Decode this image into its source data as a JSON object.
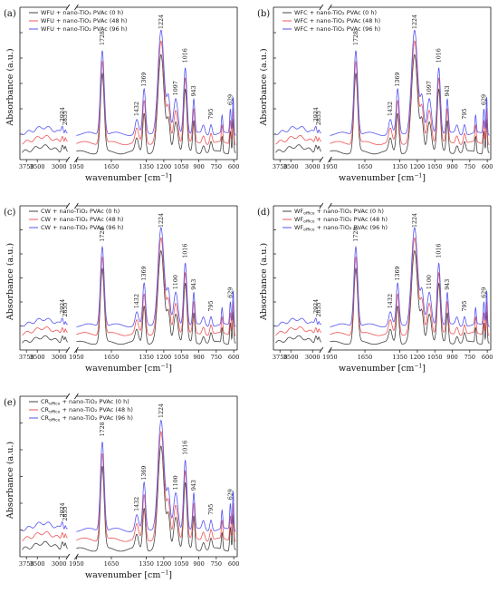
{
  "figure": {
    "y_axis_title": "Absorbance (a.u.)",
    "x_axis_title": "wavenumber [cm",
    "x_axis_title_sup": "−1",
    "x_axis_title_end": "]"
  },
  "colors": {
    "0h": "#444444",
    "48h": "#ee5555",
    "96h": "#5555ee",
    "axis": "#111111"
  },
  "chart_data": [
    {
      "type": "line",
      "panel_label": "(a)",
      "series": [
        {
          "name": "WFU + nano-TiO₂ PVAc (0 h)",
          "color_key": "0h"
        },
        {
          "name": "WFU + nano-TiO₂ PVAc (48 h)",
          "color_key": "48h"
        },
        {
          "name": "WFU + nano-TiO₂ PVAc (96 h)",
          "color_key": "96h"
        }
      ],
      "x_break": [
        2800,
        1950
      ],
      "x_ticks": [
        3750,
        3500,
        3000,
        1950,
        1650,
        1350,
        1200,
        1050,
        900,
        750,
        600
      ],
      "peak_labels": [
        {
          "wavenumber": 2924,
          "label": "2924"
        },
        {
          "wavenumber": 2855,
          "label": "2855"
        },
        {
          "wavenumber": 1728,
          "label": "1728"
        },
        {
          "wavenumber": 1432,
          "label": "1432"
        },
        {
          "wavenumber": 1369,
          "label": "1369"
        },
        {
          "wavenumber": 1224,
          "label": "1224"
        },
        {
          "wavenumber": 1097,
          "label": "1097"
        },
        {
          "wavenumber": 1016,
          "label": "1016"
        },
        {
          "wavenumber": 943,
          "label": "943"
        },
        {
          "wavenumber": 795,
          "label": "795"
        },
        {
          "wavenumber": 629,
          "label": "629"
        }
      ]
    },
    {
      "type": "line",
      "panel_label": "(b)",
      "series": [
        {
          "name": "WFC + nano-TiO₂ PVAc (0 h)",
          "color_key": "0h"
        },
        {
          "name": "WFC + nano-TiO₂ PVAc (48 h)",
          "color_key": "48h"
        },
        {
          "name": "WFC + nano-TiO₂ PVAc (96 h)",
          "color_key": "96h"
        }
      ],
      "x_break": [
        2800,
        1950
      ],
      "x_ticks": [
        3750,
        3500,
        3000,
        1950,
        1650,
        1350,
        1200,
        1050,
        900,
        750,
        600
      ],
      "peak_labels": [
        {
          "wavenumber": 2924,
          "label": "2924"
        },
        {
          "wavenumber": 2855,
          "label": "2855"
        },
        {
          "wavenumber": 1728,
          "label": "1728"
        },
        {
          "wavenumber": 1432,
          "label": "1432"
        },
        {
          "wavenumber": 1369,
          "label": "1369"
        },
        {
          "wavenumber": 1224,
          "label": "1224"
        },
        {
          "wavenumber": 1097,
          "label": "1097"
        },
        {
          "wavenumber": 1016,
          "label": "1016"
        },
        {
          "wavenumber": 943,
          "label": "943"
        },
        {
          "wavenumber": 795,
          "label": "795"
        },
        {
          "wavenumber": 629,
          "label": "629"
        }
      ]
    },
    {
      "type": "line",
      "panel_label": "(c)",
      "series": [
        {
          "name": "CW + nano-TiO₂ PVAc (0 h)",
          "color_key": "0h"
        },
        {
          "name": "CW + nano-TiO₂ PVAc (48 h)",
          "color_key": "48h"
        },
        {
          "name": "CW + nano-TiO₂ PVAc (96 h)",
          "color_key": "96h"
        }
      ],
      "x_break": [
        2800,
        1950
      ],
      "x_ticks": [
        3750,
        3500,
        3000,
        1950,
        1650,
        1350,
        1200,
        1050,
        900,
        750,
        600
      ],
      "peak_labels": [
        {
          "wavenumber": 2924,
          "label": "2924"
        },
        {
          "wavenumber": 2855,
          "label": "2855"
        },
        {
          "wavenumber": 1728,
          "label": "1728"
        },
        {
          "wavenumber": 1432,
          "label": "1432"
        },
        {
          "wavenumber": 1369,
          "label": "1369"
        },
        {
          "wavenumber": 1224,
          "label": "1224"
        },
        {
          "wavenumber": 1100,
          "label": "1100"
        },
        {
          "wavenumber": 1016,
          "label": "1016"
        },
        {
          "wavenumber": 943,
          "label": "943"
        },
        {
          "wavenumber": 795,
          "label": "795"
        },
        {
          "wavenumber": 629,
          "label": "629"
        }
      ]
    },
    {
      "type": "line",
      "panel_label": "(d)",
      "series": [
        {
          "name": "WF",
          "name_sub": "office",
          "name_rest": " + nano-TiO₂ PVAc (0 h)",
          "color_key": "0h"
        },
        {
          "name": "WF",
          "name_sub": "office",
          "name_rest": " + nano-TiO₂ PVAc (48 h)",
          "color_key": "48h"
        },
        {
          "name": "WF",
          "name_sub": "office",
          "name_rest": " + nano-TiO₂ PVAc (96 h)",
          "color_key": "96h"
        }
      ],
      "x_break": [
        2800,
        1950
      ],
      "x_ticks": [
        3750,
        3500,
        3000,
        1950,
        1650,
        1350,
        1200,
        1050,
        900,
        750,
        600
      ],
      "peak_labels": [
        {
          "wavenumber": 2924,
          "label": "2924"
        },
        {
          "wavenumber": 2855,
          "label": "2855"
        },
        {
          "wavenumber": 1728,
          "label": "1728"
        },
        {
          "wavenumber": 1432,
          "label": "1432"
        },
        {
          "wavenumber": 1369,
          "label": "1369"
        },
        {
          "wavenumber": 1224,
          "label": "1224"
        },
        {
          "wavenumber": 1100,
          "label": "1100"
        },
        {
          "wavenumber": 1016,
          "label": "1016"
        },
        {
          "wavenumber": 943,
          "label": "943"
        },
        {
          "wavenumber": 795,
          "label": "795"
        },
        {
          "wavenumber": 629,
          "label": "629"
        }
      ]
    },
    {
      "type": "line",
      "panel_label": "(e)",
      "series": [
        {
          "name": "CR",
          "name_sub": "office",
          "name_rest": " + nano-TiO₂ PVAc (0 h)",
          "color_key": "0h"
        },
        {
          "name": "CR",
          "name_sub": "office",
          "name_rest": " + nano-TiO₂ PVAc (48 h)",
          "color_key": "48h"
        },
        {
          "name": "CR",
          "name_sub": "office",
          "name_rest": " + nano-TiO₂ PVAc (96 h)",
          "color_key": "96h"
        }
      ],
      "x_break": [
        2800,
        1950
      ],
      "x_ticks": [
        3750,
        3500,
        3000,
        1950,
        1650,
        1350,
        1200,
        1050,
        900,
        750,
        600
      ],
      "peak_labels": [
        {
          "wavenumber": 2924,
          "label": "2924"
        },
        {
          "wavenumber": 2855,
          "label": "2855"
        },
        {
          "wavenumber": 1728,
          "label": "1728"
        },
        {
          "wavenumber": 1432,
          "label": "1432"
        },
        {
          "wavenumber": 1369,
          "label": "1369"
        },
        {
          "wavenumber": 1224,
          "label": "1224"
        },
        {
          "wavenumber": 1100,
          "label": "1100"
        },
        {
          "wavenumber": 1016,
          "label": "1016"
        },
        {
          "wavenumber": 943,
          "label": "943"
        },
        {
          "wavenumber": 795,
          "label": "795"
        },
        {
          "wavenumber": 629,
          "label": "629"
        }
      ]
    }
  ]
}
